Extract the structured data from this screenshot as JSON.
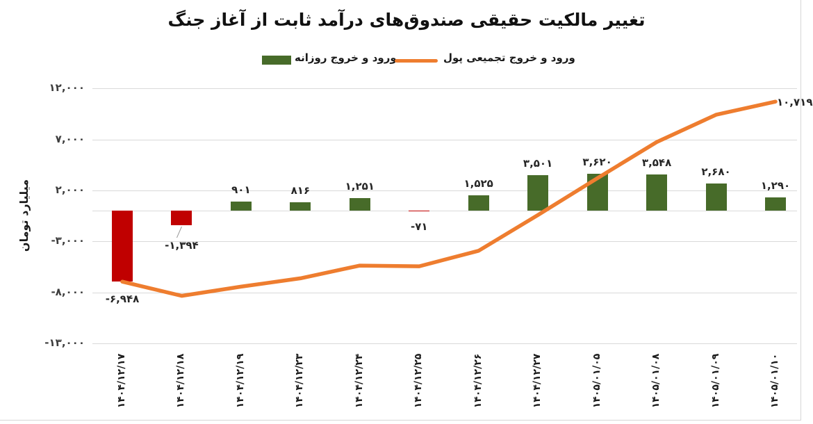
{
  "title": "تغییر مالکیت حقیقی صندوق‌های درآمد ثابت از آغاز جنگ",
  "legend": {
    "daily": {
      "label": "ورود و خروج روزانه",
      "marker": "bar-swatch"
    },
    "cumulative": {
      "label": "ورود و خروج تجمیعی پول",
      "marker": "line-swatch"
    }
  },
  "colors": {
    "bar_positive": "#476B29",
    "bar_negative": "#C00000",
    "line": "#EE7D2F",
    "gridline": "#d9d9d9",
    "text": "#262626"
  },
  "y_axis": {
    "title": "میلیارد تومان",
    "ticks": [
      {
        "value": 12000,
        "label": "۱۲,۰۰۰"
      },
      {
        "value": 7000,
        "label": "۷,۰۰۰"
      },
      {
        "value": 2000,
        "label": "۲,۰۰۰"
      },
      {
        "value": -3000,
        "label": "-۳,۰۰۰"
      },
      {
        "value": -8000,
        "label": "-۸,۰۰۰"
      },
      {
        "value": -13000,
        "label": "-۱۳,۰۰۰"
      }
    ]
  },
  "chart_data": {
    "type": "bar+line combo",
    "title": "تغییر مالکیت حقیقی صندوق‌های درآمد ثابت از آغاز جنگ",
    "ylabel": "میلیارد تومان",
    "ylim": [
      -13000,
      12000
    ],
    "grid": true,
    "legend_position": "top",
    "categories": [
      "۱۴۰۴/۱۲/۱۷",
      "۱۴۰۴/۱۲/۱۸",
      "۱۴۰۴/۱۲/۱۹",
      "۱۴۰۴/۱۲/۲۳",
      "۱۴۰۴/۱۲/۲۴",
      "۱۴۰۴/۱۲/۲۵",
      "۱۴۰۴/۱۲/۲۶",
      "۱۴۰۴/۱۲/۲۷",
      "۱۴۰۵/۰۱/۰۵",
      "۱۴۰۵/۰۱/۰۸",
      "۱۴۰۵/۰۱/۰۹",
      "۱۴۰۵/۰۱/۱۰"
    ],
    "series": [
      {
        "name": "ورود و خروج روزانه",
        "type": "bar",
        "values": [
          -6948,
          -1394,
          901,
          816,
          1251,
          -71,
          1525,
          3501,
          3620,
          3548,
          2680,
          1290
        ],
        "labels": [
          "-۶,۹۴۸",
          "-۱,۳۹۴",
          "۹۰۱",
          "۸۱۶",
          "۱,۲۵۱",
          "-۷۱",
          "۱,۵۲۵",
          "۳,۵۰۱",
          "۳,۶۲۰",
          "۳,۵۴۸",
          "۲,۶۸۰",
          "۱,۲۹۰"
        ]
      },
      {
        "name": "ورود و خروج تجمیعی پول",
        "type": "line",
        "values": [
          -6948,
          -8342,
          -7441,
          -6625,
          -5374,
          -5445,
          -3920,
          -419,
          3201,
          6749,
          9429,
          10719
        ],
        "end_label": "۱۰,۷۱۹"
      }
    ]
  }
}
